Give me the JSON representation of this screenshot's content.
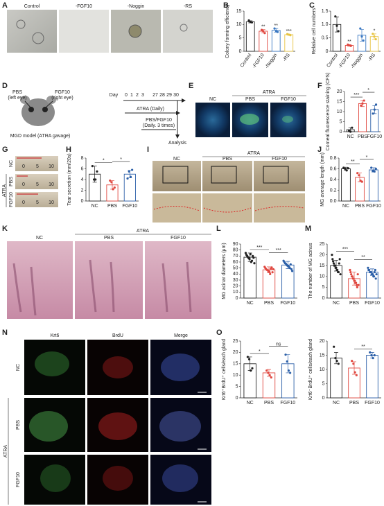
{
  "panel_labels": [
    "A",
    "B",
    "C",
    "D",
    "E",
    "F",
    "G",
    "H",
    "I",
    "J",
    "K",
    "L",
    "M",
    "N",
    "O"
  ],
  "panel_a": {
    "labels": [
      "Control",
      "-FGF10",
      "-Noggin",
      "-RS"
    ]
  },
  "panel_d": {
    "left_label": "PBS",
    "left_sub": "(left eye)",
    "right_label": "FGF10",
    "right_sub": "(right eye)",
    "model": "MGD model (ATRA gavage)",
    "day": "Day",
    "days": [
      0,
      1,
      2,
      3,
      27,
      28,
      29,
      30
    ],
    "atra": "ATRA (Daily)",
    "treat": "PBS/FGF10",
    "treat_sub": "(Daily. 3 times)",
    "analysis": "Analysis"
  },
  "panel_e": {
    "groups": [
      "NC",
      "PBS",
      "FGF10"
    ],
    "treatment": "ATRA"
  },
  "panel_g": {
    "groups": [
      "NC",
      "PBS",
      "FGF10"
    ],
    "treatment": "ATRA",
    "ruler_ticks": [
      0,
      5,
      10
    ]
  },
  "panel_i": {
    "groups": [
      "NC",
      "PBS",
      "FGF10"
    ],
    "treatment": "ATRA"
  },
  "panel_k": {
    "groups": [
      "NC",
      "PBS",
      "FGF10"
    ],
    "treatment": "ATRA"
  },
  "panel_n": {
    "channels": [
      "Krt6",
      "BrdU",
      "Merge"
    ],
    "groups": [
      "NC",
      "PBS",
      "FGF10"
    ],
    "treatment": "ATRA"
  },
  "chart_data": [
    {
      "type": "bar",
      "ylabel": "Colony forming efficiency",
      "categories": [
        "Control",
        "-FGF10",
        "-Noggin",
        "-RS"
      ],
      "colors": [
        "#222222",
        "#e0473f",
        "#3a78c2",
        "#e8c441"
      ],
      "values": [
        11,
        7.5,
        7.8,
        6.2
      ],
      "errors": [
        0.4,
        0.6,
        0.7,
        0.2
      ],
      "points": [
        [
          11.5,
          11,
          10.8
        ],
        [
          8,
          7.5,
          6.8
        ],
        [
          8.5,
          7.6,
          7.2
        ],
        [
          6.4,
          6.2,
          6
        ]
      ],
      "ylim": [
        0,
        15
      ],
      "yticks": [
        0,
        5,
        10,
        15
      ],
      "sig": [
        null,
        "**",
        "**",
        "***"
      ],
      "rotate": true
    },
    {
      "type": "bar",
      "ylabel": "Relative cell numbers",
      "categories": [
        "Control",
        "-FGF10",
        "-Noggin",
        "-RS"
      ],
      "colors": [
        "#222222",
        "#e0473f",
        "#3a78c2",
        "#e8c441"
      ],
      "values": [
        1,
        0.22,
        0.6,
        0.55
      ],
      "errors": [
        0.28,
        0.03,
        0.22,
        0.1
      ],
      "points": [
        [
          1.3,
          0.95,
          0.75
        ],
        [
          0.25,
          0.22,
          0.2
        ],
        [
          0.85,
          0.55,
          0.4
        ],
        [
          0.65,
          0.55,
          0.45
        ]
      ],
      "ylim": [
        0,
        1.5
      ],
      "yticks": [
        0,
        0.5,
        {
          "value": 1,
          "label": "1.0"
        },
        1.5
      ],
      "sig": [
        null,
        "**",
        null,
        "*"
      ],
      "rotate": true
    },
    {
      "type": "bar",
      "ylabel": "Corneal fluorescence staining (CFS)",
      "categories": [
        "NC",
        "PBS",
        "FGF10"
      ],
      "colors": [
        "#222222",
        "#e0473f",
        "#2b5fa8"
      ],
      "values": [
        1,
        14,
        11
      ],
      "errors": [
        1,
        1.5,
        2
      ],
      "points": [
        [
          0.5,
          0,
          2
        ],
        [
          13,
          14,
          15.5
        ],
        [
          9,
          11,
          13.5
        ]
      ],
      "ylim": [
        0,
        20
      ],
      "yticks": [
        0,
        5,
        10,
        15,
        20
      ],
      "comparisons": [
        {
          "pair": [
            0,
            1
          ],
          "label": "***"
        },
        {
          "pair": [
            1,
            2
          ],
          "label": "*"
        }
      ]
    },
    {
      "type": "bar",
      "ylabel": "Tear secretion (mm/20s)",
      "categories": [
        "NC",
        "PBS",
        "FGF10"
      ],
      "colors": [
        "#222222",
        "#e0473f",
        "#2b5fa8"
      ],
      "values": [
        5,
        3,
        5
      ],
      "errors": [
        1.5,
        0.8,
        0.7
      ],
      "points": [
        [
          6.5,
          4,
          4,
          5.5
        ],
        [
          3.8,
          3.5,
          2.2,
          2.5
        ],
        [
          4.2,
          5.5,
          4.5,
          5.8
        ]
      ],
      "ylim": [
        0,
        8
      ],
      "yticks": [
        0,
        2,
        4,
        6,
        8
      ],
      "comparisons": [
        {
          "pair": [
            0,
            1
          ],
          "label": "*"
        },
        {
          "pair": [
            1,
            2
          ],
          "label": "*"
        }
      ]
    },
    {
      "type": "bar",
      "ylabel": "MG average length (mm)",
      "categories": [
        "NC",
        "PBS",
        "FGF10"
      ],
      "colors": [
        "#222222",
        "#e0473f",
        "#2b5fa8"
      ],
      "values": [
        0.6,
        0.44,
        0.58
      ],
      "errors": [
        0.03,
        0.08,
        0.04
      ],
      "points": [
        [
          0.62,
          0.6,
          0.57,
          0.61
        ],
        [
          0.52,
          0.48,
          0.38,
          0.36
        ],
        [
          0.62,
          0.56,
          0.55,
          0.6
        ]
      ],
      "ylim": [
        0,
        0.8
      ],
      "yticks": [
        {
          "value": 0,
          "label": "0.0"
        },
        0.2,
        0.4,
        0.6,
        0.8
      ],
      "comparisons": [
        {
          "pair": [
            0,
            1
          ],
          "label": "**"
        },
        {
          "pair": [
            1,
            2
          ],
          "label": "*"
        }
      ]
    },
    {
      "type": "bar",
      "ylabel": "MG acinar diameters (μm)",
      "categories": [
        "NC",
        "PBS",
        "FGF10"
      ],
      "colors": [
        "#222222",
        "#e0473f",
        "#2b5fa8"
      ],
      "values": [
        68,
        47,
        55
      ],
      "errors": [
        7,
        5,
        6
      ],
      "points": [
        [
          75,
          72,
          70,
          68,
          66,
          65,
          73,
          60,
          62,
          70,
          67,
          58
        ],
        [
          52,
          50,
          48,
          47,
          46,
          45,
          44,
          40,
          49,
          51,
          43,
          48
        ],
        [
          62,
          60,
          58,
          57,
          55,
          54,
          53,
          52,
          50,
          56,
          48,
          45
        ]
      ],
      "ylim": [
        0,
        90
      ],
      "yticks": [
        0,
        10,
        20,
        30,
        40,
        50,
        60,
        70,
        80,
        90
      ],
      "comparisons": [
        {
          "pair": [
            0,
            1
          ],
          "label": "***"
        },
        {
          "pair": [
            1,
            2
          ],
          "label": "***"
        }
      ]
    },
    {
      "type": "bar",
      "ylabel": "The number of MG acinus",
      "categories": [
        "NC",
        "PBS",
        "FGF10"
      ],
      "colors": [
        "#222222",
        "#e0473f",
        "#2b5fa8"
      ],
      "values": [
        15,
        9,
        12
      ],
      "errors": [
        2.5,
        3,
        1.5
      ],
      "points": [
        [
          20,
          18,
          17,
          16,
          15,
          15,
          14,
          14,
          13,
          13,
          12,
          12,
          16,
          18,
          11
        ],
        [
          13,
          12,
          11,
          10,
          10,
          9,
          9,
          8,
          8,
          7,
          7,
          6,
          5,
          11,
          6
        ],
        [
          14,
          13,
          13,
          12,
          12,
          12,
          11,
          11,
          11,
          10,
          10,
          12,
          13,
          9,
          11
        ]
      ],
      "ylim": [
        0,
        25
      ],
      "yticks": [
        0,
        5,
        10,
        15,
        20,
        25
      ],
      "comparisons": [
        {
          "pair": [
            0,
            1
          ],
          "label": "***"
        },
        {
          "pair": [
            1,
            2
          ],
          "label": "**"
        }
      ]
    },
    {
      "type": "bar",
      "ylabel": "Krt6⁺BrdU⁺ cells/each gland",
      "categories": [
        "NC",
        "PBS",
        "FGF10"
      ],
      "colors": [
        "#222222",
        "#e0473f",
        "#2b5fa8"
      ],
      "values": [
        15,
        11,
        15
      ],
      "errors": [
        3,
        1.5,
        4
      ],
      "points": [
        [
          18,
          17,
          12,
          13
        ],
        [
          12,
          11,
          10,
          9
        ],
        [
          19,
          16,
          12,
          11
        ]
      ],
      "ylim": [
        0,
        25
      ],
      "yticks": [
        0,
        5,
        10,
        15,
        20,
        25
      ],
      "comparisons": [
        {
          "pair": [
            0,
            1
          ],
          "label": "*"
        },
        {
          "pair": [
            1,
            2
          ],
          "label": "ns"
        }
      ]
    },
    {
      "type": "bar",
      "ylabel": "Krt6⁻BrdU⁺ cells/each gland",
      "categories": [
        "NC",
        "PBS",
        "FGF10"
      ],
      "colors": [
        "#222222",
        "#e0473f",
        "#2b5fa8"
      ],
      "values": [
        14,
        10.5,
        15
      ],
      "errors": [
        2,
        2.2,
        1
      ],
      "points": [
        [
          18,
          14,
          13,
          12
        ],
        [
          13,
          12,
          9,
          8
        ],
        [
          16,
          15,
          14,
          15
        ]
      ],
      "ylim": [
        0,
        20
      ],
      "yticks": [
        0,
        5,
        10,
        15,
        20
      ],
      "comparisons": [
        {
          "pair": [
            1,
            2
          ],
          "label": "**"
        }
      ]
    }
  ]
}
